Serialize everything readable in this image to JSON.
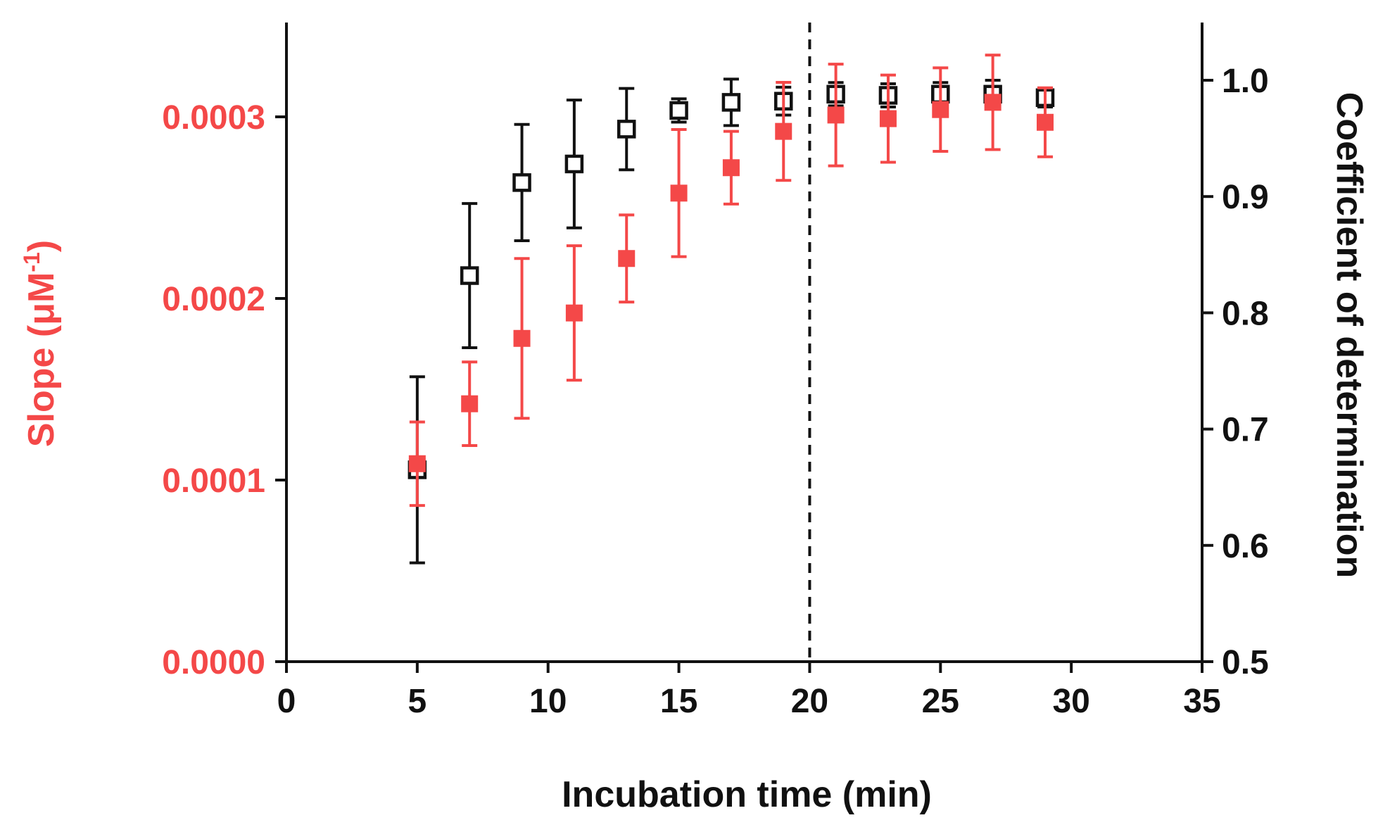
{
  "chart_data": {
    "type": "scatter",
    "title": "",
    "xlabel": "Incubation time (min)",
    "ylabel_left": {
      "prefix": "Slope (",
      "unit_main": "μM",
      "unit_sup": "-1",
      "suffix": ")"
    },
    "ylabel_right": "Coefficient of determination",
    "xlim": [
      0,
      35
    ],
    "ylim_left": [
      0,
      0.00035
    ],
    "ylim_right": [
      0.5,
      1.05
    ],
    "x_ticks": [
      "0",
      "5",
      "10",
      "15",
      "20",
      "25",
      "30",
      "35"
    ],
    "y_left_ticks": [
      "0.0000",
      "0.0001",
      "0.0002",
      "0.0003"
    ],
    "y_right_ticks": [
      "0.5",
      "0.6",
      "0.7",
      "0.8",
      "0.9",
      "1.0"
    ],
    "vline": {
      "x": 20,
      "style": "dashed"
    },
    "grid": false,
    "colors": {
      "slope": "#f44848",
      "r2": "#111111"
    },
    "series": [
      {
        "name": "Slope",
        "axis": "left",
        "marker": "filled-square",
        "x": [
          5,
          7,
          9,
          11,
          13,
          15,
          17,
          19,
          21,
          23,
          25,
          27,
          29
        ],
        "y": [
          0.000109,
          0.000142,
          0.000178,
          0.000192,
          0.000222,
          0.000258,
          0.000272,
          0.000292,
          0.000301,
          0.000299,
          0.000304,
          0.000308,
          0.000297
        ],
        "err": [
          2.3e-05,
          2.3e-05,
          4.4e-05,
          3.7e-05,
          2.4e-05,
          3.5e-05,
          2e-05,
          2.7e-05,
          2.8e-05,
          2.4e-05,
          2.3e-05,
          2.6e-05,
          1.9e-05
        ]
      },
      {
        "name": "Coefficient of determination",
        "axis": "right",
        "marker": "open-square",
        "x": [
          5,
          7,
          9,
          11,
          13,
          15,
          17,
          19,
          21,
          23,
          25,
          27,
          29
        ],
        "y": [
          0.665,
          0.832,
          0.912,
          0.928,
          0.958,
          0.974,
          0.981,
          0.982,
          0.988,
          0.987,
          0.988,
          0.988,
          0.985
        ],
        "err": [
          0.08,
          0.062,
          0.05,
          0.055,
          0.035,
          0.01,
          0.02,
          0.012,
          0.01,
          0.01,
          0.01,
          0.012,
          0.008
        ]
      }
    ]
  }
}
